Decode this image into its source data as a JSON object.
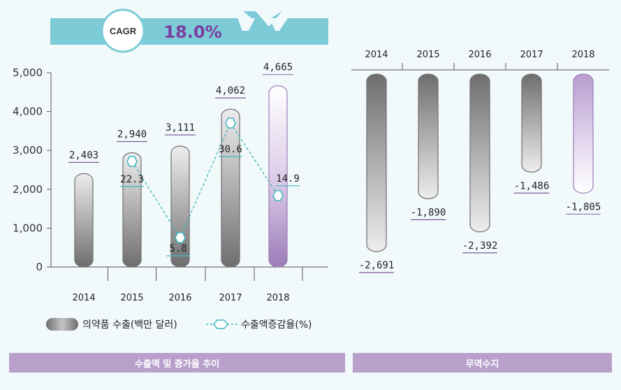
{
  "cagr": {
    "badge": "CAGR",
    "value": "18.0%"
  },
  "chart_data": [
    {
      "type": "bar",
      "categories": [
        "2014",
        "2015",
        "2016",
        "2017",
        "2018"
      ],
      "series": [
        {
          "name": "의약품 수출(백만 달러)",
          "values": [
            2403,
            2940,
            3111,
            4062,
            4665
          ],
          "labels": [
            "2,403",
            "2,940",
            "3,111",
            "4,062",
            "4,665"
          ]
        },
        {
          "name": "수출액증감율(%)",
          "type": "line",
          "values": [
            null,
            22.3,
            5.8,
            30.6,
            14.9
          ],
          "labels": [
            "",
            "22.3",
            "5.8",
            "30.6",
            "14.9"
          ]
        }
      ],
      "ylim": [
        0,
        5000
      ],
      "yticks": [
        "0",
        "1,000",
        "2,000",
        "3,000",
        "4,000",
        "5,000"
      ],
      "title": "수출액 및 증가율 추이"
    },
    {
      "type": "bar",
      "categories": [
        "2014",
        "2015",
        "2016",
        "2017",
        "2018"
      ],
      "values": [
        -2691,
        -1890,
        -2392,
        -1486,
        -1805
      ],
      "labels": [
        "-2,691",
        "-1,890",
        "-2,392",
        "-1,486",
        "-1,805"
      ],
      "title": "무역수지"
    }
  ],
  "legend": {
    "bar_label": "의약품 수출(백만 달러)",
    "line_label": "수출액증감율(%)"
  },
  "footer": {
    "left": "수출액 및 증가율 추이",
    "right": "무역수지"
  },
  "colors": {
    "highlight": "#9b7cb8",
    "line": "#3fb6c1",
    "banner": "#7dcbd6",
    "footer": "#b8a0cb",
    "cagr_text": "#7b3fa0"
  }
}
